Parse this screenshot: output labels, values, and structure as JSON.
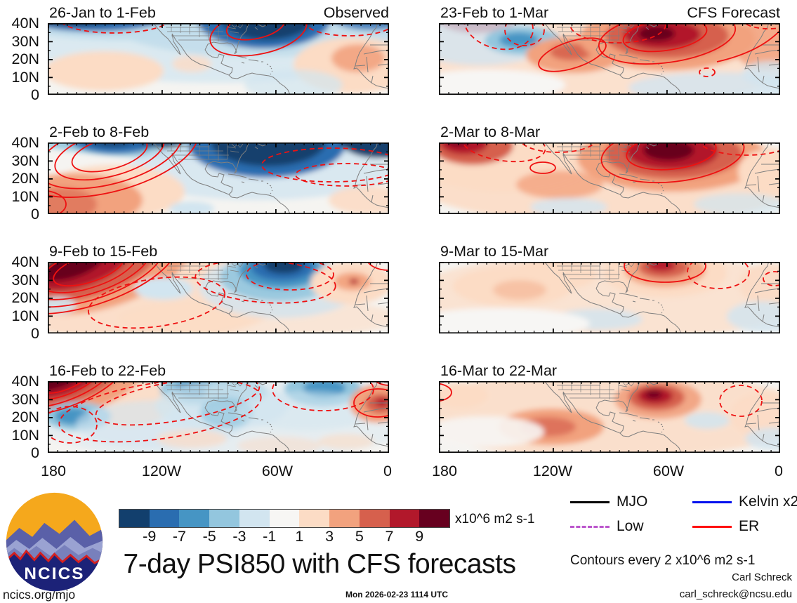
{
  "main_title": "7-day PSI850 with CFS forecasts",
  "panels": [
    {
      "title": "26-Jan to 1-Feb",
      "corner": "Observed"
    },
    {
      "title": "23-Feb to 1-Mar",
      "corner": "CFS Forecast"
    },
    {
      "title": "2-Feb to 8-Feb",
      "corner": ""
    },
    {
      "title": "2-Mar to 8-Mar",
      "corner": ""
    },
    {
      "title": "9-Feb to 15-Feb",
      "corner": ""
    },
    {
      "title": "9-Mar to 15-Mar",
      "corner": ""
    },
    {
      "title": "16-Feb to 22-Feb",
      "corner": ""
    },
    {
      "title": "16-Mar to 22-Mar",
      "corner": ""
    }
  ],
  "y_axis": {
    "labels": [
      "40N",
      "30N",
      "20N",
      "10N",
      "0"
    ]
  },
  "x_axis": {
    "labels": [
      "180",
      "120W",
      "60W",
      "0"
    ]
  },
  "colorbar": {
    "ticks": [
      "-9",
      "-7",
      "-5",
      "-3",
      "-1",
      "1",
      "3",
      "5",
      "7",
      "9"
    ],
    "colors": [
      "#123f6d",
      "#2a6db0",
      "#4695c4",
      "#93c6de",
      "#d2e5f0",
      "#f7f6f4",
      "#fcdcc5",
      "#f2a27e",
      "#d6604d",
      "#b2182b",
      "#67001f"
    ],
    "units": "x10^6 m2 s-1"
  },
  "legend": {
    "entries": [
      {
        "label": "MJO",
        "color": "#000000",
        "style": "solid"
      },
      {
        "label": "Kelvin x2",
        "color": "#0010ee",
        "style": "solid"
      },
      {
        "label": "Low",
        "color": "#bb55cc",
        "style": "dashed"
      },
      {
        "label": "ER",
        "color": "#ff1010",
        "style": "solid"
      }
    ],
    "note": "Contours every 2 x10^6 m2 s-1"
  },
  "credits": {
    "author": "Carl Schreck",
    "email": "carl_schreck@ncsu.edu",
    "site": "ncics.org/mjo",
    "timestamp": "Mon 2026-02-23 1114 UTC"
  },
  "logo": {
    "text": "NCICS"
  },
  "chart_data": {
    "type": "heatmap",
    "title": "7-day PSI850 with CFS forecasts",
    "variable": "PSI850 (850 hPa streamfunction) weekly anomalies with wave contours",
    "units": "x10^6 m2 s-1",
    "colorbar_levels": [
      -9,
      -7,
      -5,
      -3,
      -1,
      1,
      3,
      5,
      7,
      9
    ],
    "contour_interval": "2 x10^6 m2 s-1",
    "x_axis": {
      "ticks": [
        "180",
        "120W",
        "60W",
        "0"
      ],
      "range": "180 to 0 (longitude)"
    },
    "y_axis": {
      "ticks": [
        "40N",
        "30N",
        "20N",
        "10N",
        "0"
      ],
      "range": "0 to 40N (latitude)"
    },
    "legend_waves": [
      {
        "name": "MJO",
        "line": "black solid"
      },
      {
        "name": "Kelvin x2",
        "line": "blue solid"
      },
      {
        "name": "Low",
        "line": "magenta dashed"
      },
      {
        "name": "ER",
        "line": "red solid"
      }
    ],
    "panels": [
      {
        "period": "26-Jan to 1-Feb",
        "source": "Observed",
        "features": "Strong negative (blue) band along 30-40N from central Pacific to Atlantic, deepest over eastern North America / western Atlantic; solid red ER contour loop over eastern US; weak positive anomalies in subtropical east Pacific and off West Africa; dashed red contours near 160W and 30W at 40N"
      },
      {
        "period": "23-Feb to 1-Mar",
        "source": "CFS Forecast",
        "features": "Strong positive (red) anomaly centered near 60W/30N ringed by solid red ER contours; broad weak positives across domain; negative pocket near 140W/30N; dark red corner near date line at 40N; dashed red contours over NE Pacific and US; small dashed ring near 35W/10N"
      },
      {
        "period": "2-Feb to 8-Feb",
        "source": "Observed",
        "features": "Very strong negative band along 30-40N across the Pacific and from Gulf of Mexico across Atlantic to Africa; positive anomalies in southwest (near 170-140W, 0-15N) with nested solid red ER contours reaching 120W; dashed red ER contours across central Atlantic at 15-30N"
      },
      {
        "period": "2-Mar to 8-Mar",
        "source": "CFS Forecast",
        "features": "Strong positive anomaly over western Atlantic near 60W/35N with nested solid red contours; positive center near date line at 38N; small solid red ring near 125W/25N; dashed contours near 150W and over NE Atlantic; weak negatives in deep tropics"
      },
      {
        "period": "9-Feb to 15-Feb",
        "source": "Observed",
        "features": "Intense positive anomaly northeast of the date line (deep red, 35-40N) with ~5 nested solid red ER contours; strong negative cell near 55W/35N surrounded by dashed red contours; dashed red ellipse over east Pacific near 130-100W/10-25N; modest positive near 20W/30N"
      },
      {
        "period": "9-Mar to 15-Mar",
        "source": "CFS Forecast",
        "features": "Weak positive anomalies across most of domain; moderate positive max near 60W/37N with partial solid red contour; dashed red arcs near 30W/35N and 10W/30N; weak negatives along equatorward edge and near 90W/10N"
      },
      {
        "period": "16-Feb to 22-Feb",
        "source": "Observed",
        "features": "Compact intense positive anomaly at northwest corner (date line, 40N) with nested solid red ER contours; negative cells over western US, near 170W/20N, and 35W/35N (dashed ring); long dashed red ER contours sweeping across east Pacific; positive anomaly over West Africa with solid red ring"
      },
      {
        "period": "16-Mar to 22-Mar",
        "source": "CFS Forecast",
        "features": "Broad weak positives; distinct positive maximum near 65W/30N (dark red core); positive region near 130-110W/10-20N; dashed red ring near 20W/30N; small solid red arc at west edge near 33N; weak negatives bottom-left and far right"
      }
    ]
  }
}
